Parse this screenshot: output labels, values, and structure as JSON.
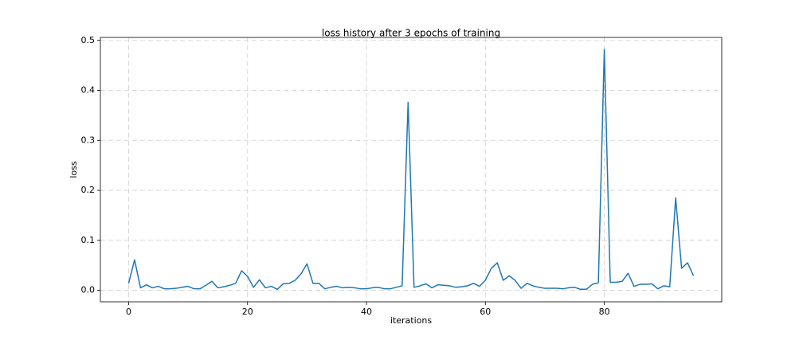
{
  "chart_data": {
    "type": "line",
    "title": "loss history after 3 epochs of training",
    "x_label": "iterations",
    "y_label": "loss",
    "x": [
      0,
      1,
      2,
      3,
      4,
      5,
      6,
      7,
      8,
      9,
      10,
      11,
      12,
      13,
      14,
      15,
      16,
      17,
      18,
      19,
      20,
      21,
      22,
      23,
      24,
      25,
      26,
      27,
      28,
      29,
      30,
      31,
      32,
      33,
      34,
      35,
      36,
      37,
      38,
      39,
      40,
      41,
      42,
      43,
      44,
      45,
      46,
      47,
      48,
      49,
      50,
      51,
      52,
      53,
      54,
      55,
      56,
      57,
      58,
      59,
      60,
      61,
      62,
      63,
      64,
      65,
      66,
      67,
      68,
      69,
      70,
      71,
      72,
      73,
      74,
      75,
      76,
      77,
      78,
      79,
      80,
      81,
      82,
      83,
      84,
      85,
      86,
      87,
      88,
      89,
      90,
      91,
      92,
      93,
      94,
      95
    ],
    "series": [
      {
        "name": "loss",
        "color": "#1f77b4",
        "values": [
          0.014,
          0.061,
          0.005,
          0.011,
          0.005,
          0.008,
          0.003,
          0.003,
          0.004,
          0.006,
          0.008,
          0.003,
          0.003,
          0.01,
          0.018,
          0.005,
          0.007,
          0.01,
          0.014,
          0.039,
          0.028,
          0.006,
          0.021,
          0.005,
          0.008,
          0.002,
          0.013,
          0.014,
          0.02,
          0.033,
          0.053,
          0.014,
          0.014,
          0.003,
          0.006,
          0.008,
          0.005,
          0.006,
          0.005,
          0.003,
          0.003,
          0.005,
          0.006,
          0.003,
          0.003,
          0.006,
          0.009,
          0.376,
          0.006,
          0.009,
          0.013,
          0.005,
          0.011,
          0.01,
          0.009,
          0.006,
          0.007,
          0.009,
          0.014,
          0.008,
          0.02,
          0.044,
          0.055,
          0.02,
          0.029,
          0.02,
          0.004,
          0.014,
          0.009,
          0.006,
          0.004,
          0.004,
          0.004,
          0.003,
          0.005,
          0.006,
          0.002,
          0.002,
          0.012,
          0.015,
          0.482,
          0.016,
          0.016,
          0.018,
          0.034,
          0.008,
          0.012,
          0.012,
          0.013,
          0.003,
          0.009,
          0.007,
          0.185,
          0.044,
          0.055,
          0.029
        ]
      }
    ],
    "xlim": [
      -4.75,
      99.75
    ],
    "xticks": [
      0,
      20,
      40,
      60,
      80
    ],
    "ylim": [
      -0.023,
      0.506
    ],
    "yticks": [
      {
        "value": 0,
        "label": "0.0"
      },
      0.1,
      0.2,
      0.3,
      0.4,
      0.5
    ],
    "grid": true
  }
}
